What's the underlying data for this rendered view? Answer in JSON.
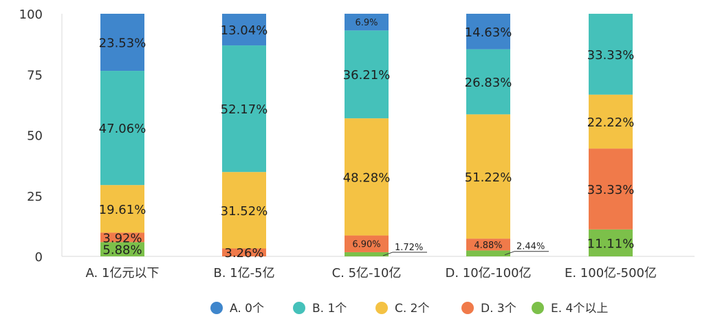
{
  "chart_data": {
    "type": "bar",
    "stacked": true,
    "title": "",
    "xlabel": "",
    "ylabel": "",
    "ylim": [
      0,
      100
    ],
    "yticks": [
      0,
      25,
      50,
      75,
      100
    ],
    "grid": false,
    "legend_position": "bottom",
    "categories": [
      "A. 1亿元以下",
      "B. 1亿-5亿",
      "C. 5亿-10亿",
      "D. 10亿-100亿",
      "E. 100亿-500亿"
    ],
    "series": [
      {
        "name": "E. 4个以上",
        "color": "#7cc04a",
        "values": [
          5.88,
          0,
          1.72,
          2.44,
          11.11
        ],
        "labels": [
          "5.88%",
          "",
          "1.72%",
          "2.44%",
          "11.11%"
        ]
      },
      {
        "name": "D. 3个",
        "color": "#f07a4a",
        "values": [
          3.92,
          3.26,
          6.9,
          4.88,
          33.33
        ],
        "labels": [
          "3.92%",
          "3.26%",
          "6.90%",
          "4.88%",
          "33.33%"
        ]
      },
      {
        "name": "C. 2个",
        "color": "#f4c244",
        "values": [
          19.61,
          31.52,
          48.28,
          51.22,
          22.22
        ],
        "labels": [
          "19.61%",
          "31.52%",
          "48.28%",
          "51.22%",
          "22.22%"
        ]
      },
      {
        "name": "B. 1个",
        "color": "#45c1ba",
        "values": [
          47.06,
          52.17,
          36.21,
          26.83,
          33.33
        ],
        "labels": [
          "47.06%",
          "52.17%",
          "36.21%",
          "26.83%",
          "33.33%"
        ]
      },
      {
        "name": "A. 0个",
        "color": "#3f86cc",
        "values": [
          23.53,
          13.04,
          6.9,
          14.63,
          0
        ],
        "labels": [
          "23.53%",
          "13.04%",
          "6.9%",
          "14.63%",
          ""
        ]
      }
    ],
    "legend": [
      {
        "name": "A. 0个",
        "color": "#3f86cc"
      },
      {
        "name": "B. 1个",
        "color": "#45c1ba"
      },
      {
        "name": "C. 2个",
        "color": "#f4c244"
      },
      {
        "name": "D. 3个",
        "color": "#f07a4a"
      },
      {
        "name": "E. 4个以上",
        "color": "#7cc04a"
      }
    ]
  }
}
